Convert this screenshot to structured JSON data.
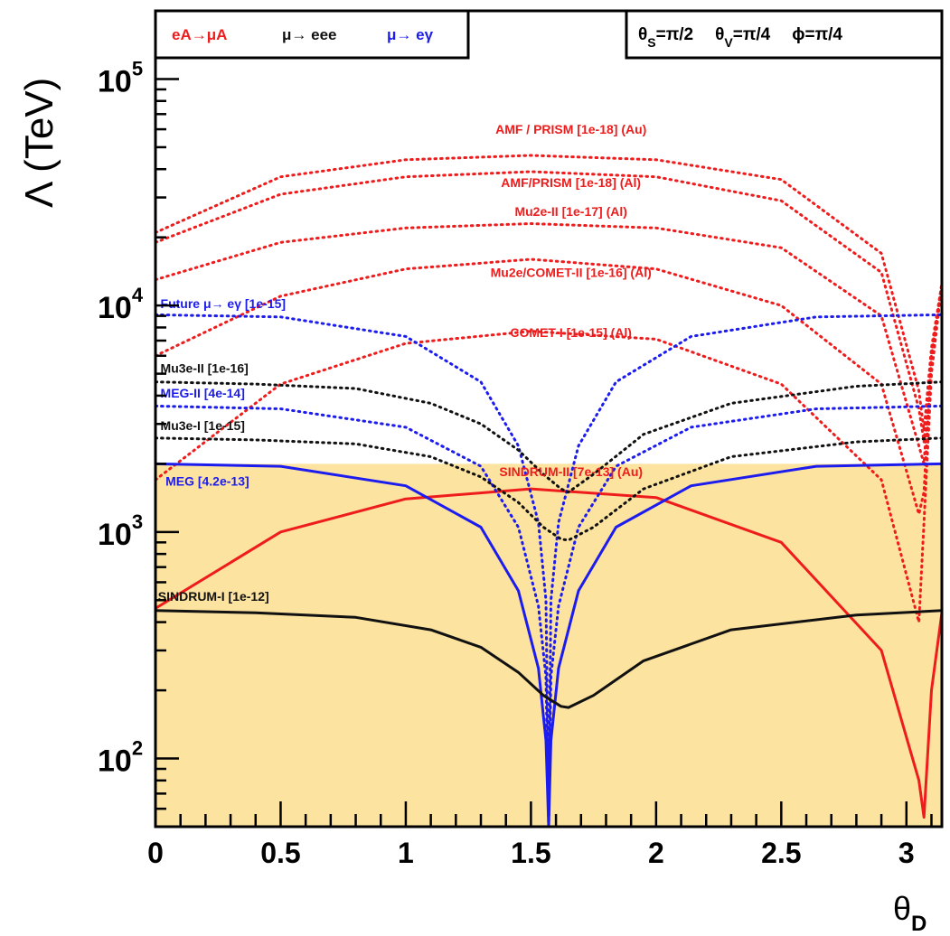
{
  "chart_data": {
    "type": "line",
    "title": "",
    "xlabel": "θ",
    "xlabel_sub": "D",
    "ylabel": "Λ  (TeV)",
    "xlim": [
      0,
      3.1416
    ],
    "ylim": [
      50,
      200000
    ],
    "yscale": "log",
    "x_ticks": [
      {
        "value": 0,
        "label": "0"
      },
      {
        "value": 0.5,
        "label": "0.5"
      },
      {
        "value": 1,
        "label": "1"
      },
      {
        "value": 1.5,
        "label": "1.5"
      },
      {
        "value": 2,
        "label": "2"
      },
      {
        "value": 2.5,
        "label": "2.5"
      },
      {
        "value": 3,
        "label": "3"
      }
    ],
    "y_ticks": [
      {
        "value": 100,
        "base": "10",
        "exp": "2"
      },
      {
        "value": 1000,
        "base": "10",
        "exp": "3"
      },
      {
        "value": 10000,
        "base": "10",
        "exp": "4"
      },
      {
        "value": 100000,
        "base": "10",
        "exp": "5"
      }
    ],
    "excluded_region": {
      "upper": 2000,
      "color": "#fde3a0"
    },
    "colors": {
      "red": "#ee1c1c",
      "blue": "#1c1cee",
      "black": "#111111"
    },
    "legend_left": [
      {
        "text": "eA→μA",
        "color": "red"
      },
      {
        "text": "μ→ eee",
        "color": "black"
      },
      {
        "text": "μ→ eγ",
        "color": "blue"
      }
    ],
    "legend_right": "θS=π/2   θV=π/4   ϕ=π/4",
    "legend_right_parts": [
      {
        "sym": "θ",
        "sub": "S",
        "val": "=π/2"
      },
      {
        "sym": "θ",
        "sub": "V",
        "val": "=π/4"
      },
      {
        "sym": "ϕ",
        "sub": "",
        "val": "=π/4"
      }
    ],
    "series": [
      {
        "name": "SINDRUM-II [7e-13] (Au)",
        "process": "mu-e conversion",
        "style": "solid",
        "color": "red",
        "x": [
          0,
          0.5,
          1.0,
          1.5,
          2.0,
          2.5,
          2.9,
          3.05,
          3.07,
          3.1,
          3.1416
        ],
        "y": [
          460,
          1000,
          1400,
          1550,
          1420,
          900,
          300,
          80,
          55,
          200,
          440
        ]
      },
      {
        "name": "COMET-I [1e-15] (Al)",
        "process": "mu-e conversion",
        "style": "dotted",
        "color": "red",
        "x": [
          0,
          0.5,
          1.0,
          1.5,
          2.0,
          2.5,
          2.9,
          3.05,
          3.07,
          3.1,
          3.1416
        ],
        "y": [
          1700,
          4500,
          6800,
          7700,
          7100,
          4500,
          1700,
          400,
          1100,
          5000,
          12500
        ]
      },
      {
        "name": "Mu2e/COMET-II [1e-16] (Al)",
        "process": "mu-e conversion",
        "style": "dotted",
        "color": "red",
        "x": [
          0,
          0.5,
          1.0,
          1.5,
          2.0,
          2.5,
          2.9,
          3.05,
          3.07,
          3.1,
          3.1416
        ],
        "y": [
          6000,
          11000,
          14500,
          16000,
          14500,
          10000,
          4500,
          1200,
          1500,
          6000,
          12500
        ]
      },
      {
        "name": "Mu2e-II [1e-17] (Al)",
        "process": "mu-e conversion",
        "style": "dotted",
        "color": "red",
        "x": [
          0,
          0.5,
          1.0,
          1.5,
          2.0,
          2.5,
          2.9,
          3.05,
          3.07,
          3.1,
          3.1416
        ],
        "y": [
          13000,
          19000,
          22000,
          23000,
          22000,
          18000,
          9000,
          2400,
          2000,
          6000,
          12500
        ]
      },
      {
        "name": "AMF/PRISM [1e-18] (Al)",
        "process": "mu-e conversion",
        "style": "dotted",
        "color": "red",
        "x": [
          0,
          0.5,
          1.0,
          1.5,
          2.0,
          2.5,
          2.9,
          3.05,
          3.07,
          3.1,
          3.1416
        ],
        "y": [
          19000,
          31000,
          37000,
          39000,
          37000,
          29000,
          14000,
          3500,
          2500,
          6000,
          12500
        ]
      },
      {
        "name": "AMF / PRISM [1e-18] (Au)",
        "process": "mu-e conversion",
        "style": "dotted",
        "color": "red",
        "x": [
          0,
          0.5,
          1.0,
          1.5,
          2.0,
          2.5,
          2.9,
          3.05,
          3.07,
          3.1,
          3.1416
        ],
        "y": [
          21000,
          37000,
          44000,
          46000,
          44000,
          36000,
          17000,
          4200,
          2800,
          6500,
          12500
        ]
      },
      {
        "name": "MEG [4.2e-13]",
        "process": "mu to e gamma",
        "style": "solid",
        "color": "blue",
        "x": [
          0,
          0.5,
          1.0,
          1.3,
          1.45,
          1.53,
          1.56,
          1.5708,
          1.58,
          1.61,
          1.69,
          1.84,
          2.14,
          2.64,
          3.1416
        ],
        "y": [
          2000,
          1950,
          1600,
          1050,
          550,
          250,
          120,
          50,
          120,
          250,
          550,
          1050,
          1600,
          1950,
          2000
        ]
      },
      {
        "name": "MEG-II [4e-14]",
        "process": "mu to e gamma",
        "style": "dotted",
        "color": "blue",
        "x": [
          0,
          0.5,
          1.0,
          1.3,
          1.45,
          1.53,
          1.56,
          1.5708,
          1.58,
          1.61,
          1.69,
          1.84,
          2.14,
          2.64,
          3.1416
        ],
        "y": [
          3600,
          3500,
          2900,
          1950,
          1050,
          470,
          230,
          50,
          230,
          470,
          1050,
          1950,
          2900,
          3500,
          3600
        ]
      },
      {
        "name": "Future μ→ eγ [1e-15]",
        "process": "mu to e gamma",
        "style": "dotted",
        "color": "blue",
        "x": [
          0,
          0.5,
          1.0,
          1.3,
          1.45,
          1.53,
          1.56,
          1.5708,
          1.58,
          1.61,
          1.69,
          1.84,
          2.14,
          2.64,
          3.1416
        ],
        "y": [
          9100,
          8900,
          7300,
          4600,
          2400,
          1100,
          500,
          60,
          500,
          1100,
          2400,
          4600,
          7300,
          8900,
          9100
        ]
      },
      {
        "name": "SINDRUM-I [1e-12]",
        "process": "mu to eee",
        "style": "solid",
        "color": "black",
        "x": [
          0,
          0.4,
          0.8,
          1.1,
          1.3,
          1.45,
          1.55,
          1.62,
          1.65,
          1.75,
          1.95,
          2.3,
          2.8,
          3.1416
        ],
        "y": [
          450,
          440,
          420,
          370,
          310,
          240,
          190,
          170,
          168,
          190,
          270,
          370,
          430,
          450
        ]
      },
      {
        "name": "Mu3e-I [1e-15]",
        "process": "mu to eee",
        "style": "dotted",
        "color": "black",
        "x": [
          0,
          0.4,
          0.8,
          1.1,
          1.3,
          1.45,
          1.55,
          1.62,
          1.65,
          1.75,
          1.95,
          2.3,
          2.8,
          3.1416
        ],
        "y": [
          2600,
          2550,
          2450,
          2150,
          1750,
          1350,
          1050,
          930,
          920,
          1050,
          1550,
          2150,
          2500,
          2600
        ]
      },
      {
        "name": "Mu3e-II [1e-16]",
        "process": "mu to eee",
        "style": "dotted",
        "color": "black",
        "x": [
          0,
          0.4,
          0.8,
          1.1,
          1.3,
          1.45,
          1.55,
          1.62,
          1.65,
          1.75,
          1.95,
          2.3,
          2.8,
          3.1416
        ],
        "y": [
          4600,
          4500,
          4300,
          3700,
          3000,
          2300,
          1800,
          1550,
          1500,
          1800,
          2700,
          3700,
          4400,
          4600
        ]
      }
    ],
    "annotations": [
      {
        "text": "AMF / PRISM [1e-18] (Au)",
        "color": "red",
        "x": 1.66,
        "y": 60000,
        "anchor": "middle"
      },
      {
        "text": "AMF/PRISM [1e-18] (Al)",
        "color": "red",
        "x": 1.66,
        "y": 35000,
        "anchor": "middle"
      },
      {
        "text": "Mu2e-II [1e-17] (Al)",
        "color": "red",
        "x": 1.66,
        "y": 26000,
        "anchor": "middle"
      },
      {
        "text": "Mu2e/COMET-II [1e-16] (Al)",
        "color": "red",
        "x": 1.66,
        "y": 14000,
        "anchor": "middle"
      },
      {
        "text": "COMET-I [1e-15] (Al)",
        "color": "red",
        "x": 1.66,
        "y": 7600,
        "anchor": "middle"
      },
      {
        "text": "SINDRUM-II [7e-13] (Au)",
        "color": "red",
        "x": 1.66,
        "y": 1850,
        "anchor": "middle"
      },
      {
        "text": "Future μ→ eγ [1e-15]",
        "color": "blue",
        "x": 0.02,
        "y": 10200,
        "anchor": "start"
      },
      {
        "text": "Mu3e-II [1e-16]",
        "color": "black",
        "x": 0.02,
        "y": 5300,
        "anchor": "start"
      },
      {
        "text": "MEG-II [4e-14]",
        "color": "blue",
        "x": 0.02,
        "y": 4100,
        "anchor": "start"
      },
      {
        "text": "Mu3e-I [1e-15]",
        "color": "black",
        "x": 0.02,
        "y": 2950,
        "anchor": "start"
      },
      {
        "text": "MEG [4.2e-13]",
        "color": "blue",
        "x": 0.04,
        "y": 1680,
        "anchor": "start"
      },
      {
        "text": "SINDRUM-I [1e-12]",
        "color": "black",
        "x": 0.01,
        "y": 520,
        "anchor": "start"
      }
    ]
  }
}
